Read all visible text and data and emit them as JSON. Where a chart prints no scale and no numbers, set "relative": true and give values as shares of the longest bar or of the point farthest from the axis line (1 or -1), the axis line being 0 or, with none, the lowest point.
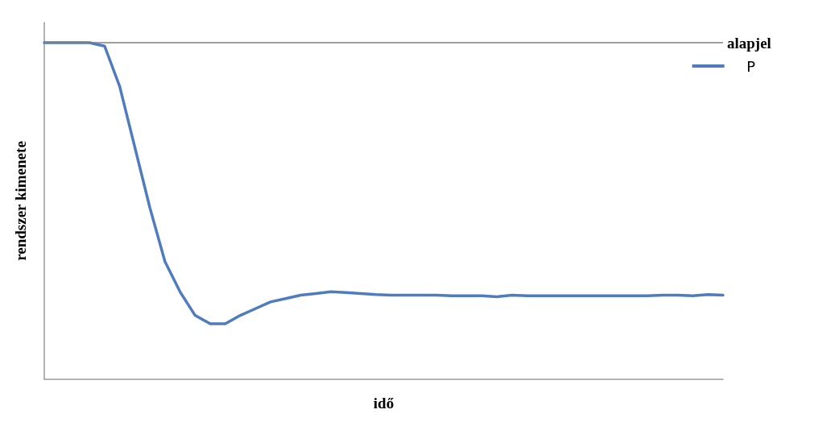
{
  "chart_data": {
    "type": "line",
    "relative": true,
    "xlabel": "idő",
    "ylabel": "rendszer kimenete",
    "categories": [
      null,
      null,
      null,
      null,
      null,
      null,
      null,
      null,
      null,
      null,
      null,
      null,
      null,
      null,
      null,
      null,
      null,
      null,
      null,
      null,
      null,
      null,
      null,
      null,
      null,
      null,
      null,
      null,
      null,
      null,
      null,
      null,
      null,
      null,
      null,
      null,
      null,
      null,
      null,
      null,
      null,
      null,
      null,
      null,
      null,
      null
    ],
    "series": [
      {
        "name": "P",
        "color": "#4f7bbf",
        "values": [
          1.0,
          1.0,
          1.0,
          1.0,
          0.99,
          0.87,
          0.69,
          0.51,
          0.35,
          0.26,
          0.19,
          0.165,
          0.165,
          0.19,
          0.21,
          0.23,
          0.24,
          0.25,
          0.255,
          0.26,
          0.258,
          0.255,
          0.252,
          0.25,
          0.25,
          0.25,
          0.25,
          0.248,
          0.248,
          0.248,
          0.245,
          0.25,
          0.248,
          0.248,
          0.248,
          0.248,
          0.248,
          0.248,
          0.248,
          0.248,
          0.248,
          0.25,
          0.25,
          0.248,
          0.252,
          0.25
        ]
      }
    ],
    "ref_lines": [
      {
        "axis": "y",
        "value": 1.0,
        "label": "alapjel",
        "color": "#7f7f7f"
      }
    ],
    "legend": "top right",
    "grid": false,
    "marker": "none",
    "line_style": "solid"
  }
}
